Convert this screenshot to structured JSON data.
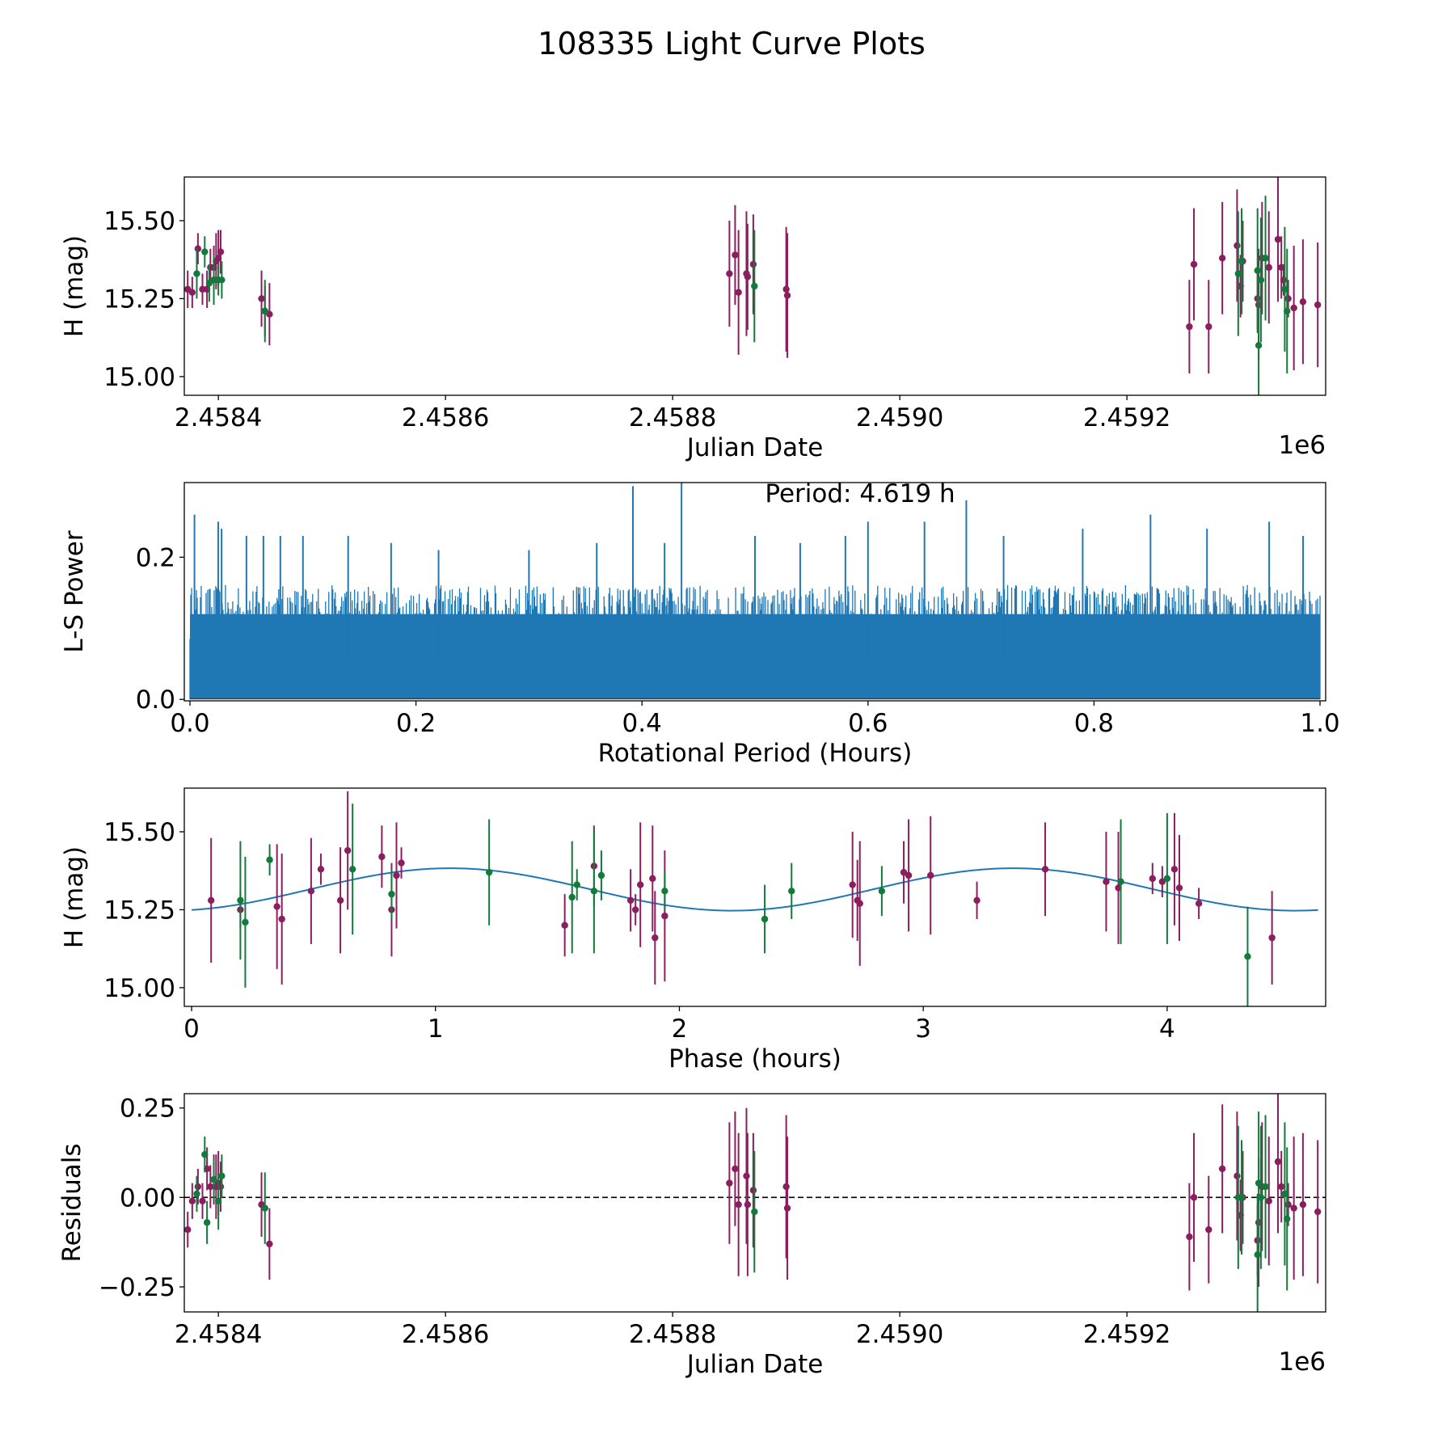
{
  "figure": {
    "title": "108335 Light Curve Plots"
  },
  "colors": {
    "magenta": "#8b1e5e",
    "green": "#127a3a",
    "line": "#1f77b4",
    "axis": "#000000"
  },
  "chart_data": [
    {
      "id": "lc",
      "type": "scatter",
      "title": "",
      "xlabel": "Julian Date",
      "ylabel": "H (mag)",
      "offset_label": "1e6",
      "xlim": [
        2458370,
        2459375
      ],
      "ylim": [
        14.94,
        15.64
      ],
      "xticks": [
        2458400,
        2458600,
        2458800,
        2459000,
        2459200
      ],
      "xtick_labels": [
        "2.4584",
        "2.4586",
        "2.4588",
        "2.4590",
        "2.4592"
      ],
      "yticks": [
        15.0,
        15.25,
        15.5
      ],
      "ytick_labels": [
        "15.00",
        "15.25",
        "15.50"
      ],
      "series": [
        {
          "name": "band-1",
          "color": "magenta",
          "points": [
            [
              2458373,
              15.28,
              0.06
            ],
            [
              2458377,
              15.27,
              0.05
            ],
            [
              2458382,
              15.41,
              0.05
            ],
            [
              2458386,
              15.28,
              0.05
            ],
            [
              2458390,
              15.28,
              0.06
            ],
            [
              2458393,
              15.35,
              0.06
            ],
            [
              2458396,
              15.35,
              0.07
            ],
            [
              2458398,
              15.37,
              0.09
            ],
            [
              2458400,
              15.38,
              0.09
            ],
            [
              2458402,
              15.4,
              0.07
            ],
            [
              2458438,
              15.25,
              0.09
            ],
            [
              2458441,
              15.21,
              0.08
            ],
            [
              2458445,
              15.2,
              0.1
            ],
            [
              2458850,
              15.33,
              0.17
            ],
            [
              2458855,
              15.39,
              0.16
            ],
            [
              2458858,
              15.27,
              0.2
            ],
            [
              2458865,
              15.33,
              0.2
            ],
            [
              2458866,
              15.32,
              0.17
            ],
            [
              2458871,
              15.36,
              0.16
            ],
            [
              2458900,
              15.28,
              0.2
            ],
            [
              2458901,
              15.26,
              0.2
            ],
            [
              2459255,
              15.16,
              0.15
            ],
            [
              2459259,
              15.36,
              0.18
            ],
            [
              2459272,
              15.16,
              0.15
            ],
            [
              2459284,
              15.38,
              0.18
            ],
            [
              2459297,
              15.42,
              0.18
            ],
            [
              2459300,
              15.29,
              0.1
            ],
            [
              2459302,
              15.37,
              0.13
            ],
            [
              2459315,
              15.25,
              0.1
            ],
            [
              2459316,
              15.23,
              0.18
            ],
            [
              2459319,
              15.38,
              0.18
            ],
            [
              2459325,
              15.35,
              0.18
            ],
            [
              2459333,
              15.44,
              0.2
            ],
            [
              2459336,
              15.35,
              0.1
            ],
            [
              2459338,
              15.31,
              0.05
            ],
            [
              2459342,
              15.25,
              0.06
            ],
            [
              2459347,
              15.22,
              0.2
            ],
            [
              2459355,
              15.24,
              0.2
            ],
            [
              2459368,
              15.23,
              0.2
            ]
          ]
        },
        {
          "name": "band-2",
          "color": "green",
          "points": [
            [
              2458381,
              15.33,
              0.08
            ],
            [
              2458388,
              15.4,
              0.05
            ],
            [
              2458392,
              15.3,
              0.06
            ],
            [
              2458396,
              15.31,
              0.08
            ],
            [
              2458400,
              15.31,
              0.05
            ],
            [
              2458403,
              15.31,
              0.06
            ],
            [
              2458441,
              15.21,
              0.1
            ],
            [
              2458872,
              15.29,
              0.18
            ],
            [
              2459298,
              15.33,
              0.2
            ],
            [
              2459301,
              15.37,
              0.17
            ],
            [
              2459315,
              15.34,
              0.2
            ],
            [
              2459316,
              15.1,
              0.16
            ],
            [
              2459318,
              15.31,
              0.2
            ],
            [
              2459322,
              15.38,
              0.2
            ],
            [
              2459339,
              15.28,
              0.2
            ],
            [
              2459341,
              15.21,
              0.2
            ]
          ]
        }
      ]
    },
    {
      "id": "ls",
      "type": "line",
      "title": "Period: 4.619 h",
      "xlabel": "Rotational Period (Hours)",
      "ylabel": "L-S Power",
      "xlim": [
        -0.005,
        1.005
      ],
      "ylim": [
        -0.002,
        0.305
      ],
      "xticks": [
        0.0,
        0.2,
        0.4,
        0.6,
        0.8,
        1.0
      ],
      "xtick_labels": [
        "0.0",
        "0.2",
        "0.4",
        "0.6",
        "0.8",
        "1.0"
      ],
      "yticks": [
        0.0,
        0.2
      ],
      "ytick_labels": [
        "0.0",
        "0.2"
      ],
      "x_range": [
        0.0,
        1.0
      ],
      "baseline_power": 0.14,
      "peaks": [
        [
          0.004,
          0.26
        ],
        [
          0.025,
          0.25
        ],
        [
          0.028,
          0.24
        ],
        [
          0.05,
          0.23
        ],
        [
          0.065,
          0.23
        ],
        [
          0.08,
          0.23
        ],
        [
          0.1,
          0.23
        ],
        [
          0.14,
          0.23
        ],
        [
          0.178,
          0.22
        ],
        [
          0.22,
          0.21
        ],
        [
          0.3,
          0.21
        ],
        [
          0.36,
          0.22
        ],
        [
          0.392,
          0.3
        ],
        [
          0.42,
          0.22
        ],
        [
          0.435,
          0.305
        ],
        [
          0.5,
          0.23
        ],
        [
          0.54,
          0.22
        ],
        [
          0.58,
          0.23
        ],
        [
          0.6,
          0.25
        ],
        [
          0.65,
          0.25
        ],
        [
          0.687,
          0.28
        ],
        [
          0.72,
          0.23
        ],
        [
          0.79,
          0.24
        ],
        [
          0.85,
          0.26
        ],
        [
          0.9,
          0.24
        ],
        [
          0.955,
          0.25
        ],
        [
          0.985,
          0.23
        ]
      ]
    },
    {
      "id": "phase",
      "type": "scatter",
      "title": "",
      "xlabel": "Phase (hours)",
      "ylabel": "H (mag)",
      "xlim": [
        -0.03,
        4.65
      ],
      "ylim": [
        14.94,
        15.64
      ],
      "xticks": [
        0,
        1,
        2,
        3,
        4
      ],
      "xtick_labels": [
        "0",
        "1",
        "2",
        "3",
        "4"
      ],
      "yticks": [
        15.0,
        15.25,
        15.5
      ],
      "ytick_labels": [
        "15.00",
        "15.25",
        "15.50"
      ],
      "model": {
        "mean": 15.315,
        "amplitude": 0.068,
        "period_hours": 4.619,
        "peak_phase": 1.06,
        "x_range": [
          0.0,
          4.619
        ]
      },
      "series": [
        {
          "name": "band-1",
          "color": "magenta",
          "points": [
            [
              0.08,
              15.28,
              0.2
            ],
            [
              0.2,
              15.25,
              0.06
            ],
            [
              0.35,
              15.26,
              0.2
            ],
            [
              0.37,
              15.22,
              0.21
            ],
            [
              0.49,
              15.31,
              0.17
            ],
            [
              0.53,
              15.38,
              0.05
            ],
            [
              0.61,
              15.28,
              0.17
            ],
            [
              0.64,
              15.44,
              0.19
            ],
            [
              0.78,
              15.42,
              0.1
            ],
            [
              0.82,
              15.25,
              0.15
            ],
            [
              0.84,
              15.36,
              0.17
            ],
            [
              0.86,
              15.4,
              0.05
            ],
            [
              1.53,
              15.2,
              0.1
            ],
            [
              1.65,
              15.39,
              0.13
            ],
            [
              1.8,
              15.28,
              0.1
            ],
            [
              1.82,
              15.25,
              0.05
            ],
            [
              1.84,
              15.33,
              0.2
            ],
            [
              1.89,
              15.35,
              0.17
            ],
            [
              1.9,
              15.16,
              0.15
            ],
            [
              1.94,
              15.23,
              0.21
            ],
            [
              2.71,
              15.33,
              0.17
            ],
            [
              2.73,
              15.28,
              0.13
            ],
            [
              2.74,
              15.27,
              0.2
            ],
            [
              2.92,
              15.37,
              0.1
            ],
            [
              2.94,
              15.36,
              0.18
            ],
            [
              3.03,
              15.36,
              0.19
            ],
            [
              3.22,
              15.28,
              0.06
            ],
            [
              3.5,
              15.38,
              0.15
            ],
            [
              3.75,
              15.34,
              0.16
            ],
            [
              3.8,
              15.32,
              0.18
            ],
            [
              3.94,
              15.35,
              0.05
            ],
            [
              3.98,
              15.34,
              0.05
            ],
            [
              4.03,
              15.38,
              0.18
            ],
            [
              4.05,
              15.32,
              0.17
            ],
            [
              4.13,
              15.27,
              0.05
            ],
            [
              4.43,
              15.16,
              0.15
            ]
          ]
        },
        {
          "name": "band-2",
          "color": "green",
          "points": [
            [
              0.2,
              15.28,
              0.19
            ],
            [
              0.22,
              15.21,
              0.21
            ],
            [
              0.32,
              15.41,
              0.05
            ],
            [
              0.66,
              15.38,
              0.21
            ],
            [
              0.82,
              15.3,
              0.08
            ],
            [
              1.22,
              15.37,
              0.17
            ],
            [
              1.56,
              15.29,
              0.18
            ],
            [
              1.58,
              15.33,
              0.05
            ],
            [
              1.65,
              15.31,
              0.2
            ],
            [
              1.68,
              15.36,
              0.08
            ],
            [
              1.94,
              15.31,
              0.06
            ],
            [
              2.35,
              15.22,
              0.11
            ],
            [
              2.46,
              15.31,
              0.09
            ],
            [
              2.83,
              15.31,
              0.08
            ],
            [
              3.81,
              15.34,
              0.2
            ],
            [
              4.0,
              15.35,
              0.21
            ],
            [
              4.33,
              15.1,
              0.16
            ]
          ]
        }
      ]
    },
    {
      "id": "res",
      "type": "scatter",
      "title": "",
      "xlabel": "Julian Date",
      "ylabel": "Residuals",
      "offset_label": "1e6",
      "xlim": [
        2458370,
        2459375
      ],
      "ylim": [
        -0.32,
        0.29
      ],
      "xticks": [
        2458400,
        2458600,
        2458800,
        2459000,
        2459200
      ],
      "xtick_labels": [
        "2.4584",
        "2.4586",
        "2.4588",
        "2.4590",
        "2.4592"
      ],
      "yticks": [
        -0.25,
        0.0,
        0.25
      ],
      "ytick_labels": [
        "−0.25",
        "0.00",
        "0.25"
      ],
      "zero_line": 0.0,
      "series": [
        {
          "name": "band-1",
          "color": "magenta",
          "points": [
            [
              2458373,
              -0.09,
              0.05
            ],
            [
              2458377,
              -0.01,
              0.05
            ],
            [
              2458382,
              0.03,
              0.05
            ],
            [
              2458386,
              -0.01,
              0.05
            ],
            [
              2458390,
              0.08,
              0.06
            ],
            [
              2458393,
              0.03,
              0.06
            ],
            [
              2458396,
              0.05,
              0.07
            ],
            [
              2458398,
              0.03,
              0.09
            ],
            [
              2458400,
              0.04,
              0.09
            ],
            [
              2458402,
              0.03,
              0.07
            ],
            [
              2458438,
              -0.02,
              0.09
            ],
            [
              2458445,
              -0.13,
              0.1
            ],
            [
              2458850,
              0.04,
              0.17
            ],
            [
              2458855,
              0.08,
              0.16
            ],
            [
              2458858,
              -0.02,
              0.2
            ],
            [
              2458865,
              0.06,
              0.19
            ],
            [
              2458866,
              -0.02,
              0.2
            ],
            [
              2458871,
              0.02,
              0.16
            ],
            [
              2458900,
              0.03,
              0.2
            ],
            [
              2458901,
              -0.03,
              0.2
            ],
            [
              2459255,
              -0.11,
              0.15
            ],
            [
              2459259,
              0.0,
              0.18
            ],
            [
              2459272,
              -0.09,
              0.15
            ],
            [
              2459284,
              0.08,
              0.18
            ],
            [
              2459297,
              0.06,
              0.18
            ],
            [
              2459300,
              -0.05,
              0.1
            ],
            [
              2459302,
              0.0,
              0.13
            ],
            [
              2459315,
              -0.12,
              0.1
            ],
            [
              2459316,
              -0.07,
              0.18
            ],
            [
              2459319,
              0.03,
              0.18
            ],
            [
              2459325,
              -0.01,
              0.18
            ],
            [
              2459333,
              0.1,
              0.2
            ],
            [
              2459336,
              0.03,
              0.1
            ],
            [
              2459342,
              -0.02,
              0.06
            ],
            [
              2459347,
              -0.03,
              0.2
            ],
            [
              2459355,
              -0.02,
              0.2
            ],
            [
              2459368,
              -0.04,
              0.2
            ]
          ]
        },
        {
          "name": "band-2",
          "color": "green",
          "points": [
            [
              2458381,
              0.01,
              0.05
            ],
            [
              2458388,
              0.12,
              0.05
            ],
            [
              2458390,
              -0.07,
              0.06
            ],
            [
              2458396,
              0.05,
              0.06
            ],
            [
              2458400,
              -0.01,
              0.08
            ],
            [
              2458403,
              0.06,
              0.06
            ],
            [
              2458441,
              -0.03,
              0.1
            ],
            [
              2458872,
              -0.04,
              0.17
            ],
            [
              2459298,
              0.0,
              0.2
            ],
            [
              2459301,
              0.0,
              0.16
            ],
            [
              2459315,
              -0.16,
              0.17
            ],
            [
              2459316,
              0.04,
              0.2
            ],
            [
              2459318,
              0.0,
              0.2
            ],
            [
              2459322,
              0.03,
              0.2
            ],
            [
              2459339,
              0.01,
              0.2
            ],
            [
              2459341,
              -0.06,
              0.2
            ]
          ]
        }
      ]
    }
  ]
}
